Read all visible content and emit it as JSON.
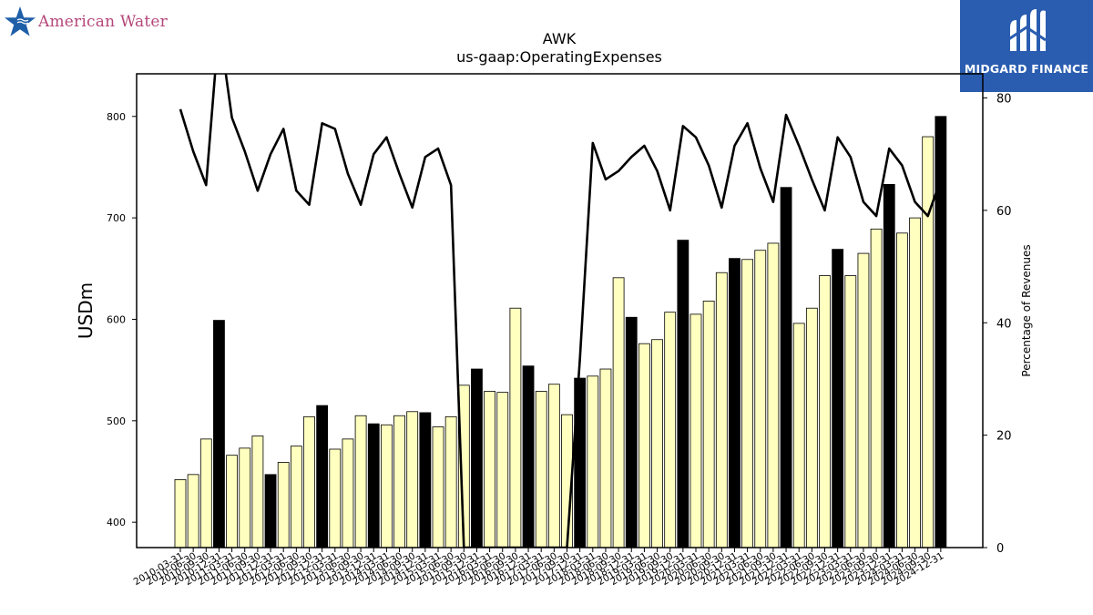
{
  "logos": {
    "left_text": "American Water",
    "right_text": "MIDGARD FINANCE"
  },
  "colors": {
    "bar_fill": "#ffffc0",
    "bar_highlight": "#000000",
    "line": "#000000",
    "logo_right_bg": "#2a5db0",
    "logo_left_text": "#b5477a",
    "logo_left_star": "#1f5fa8"
  },
  "chart_data": {
    "type": "bar",
    "title": "AWK",
    "subtitle": "us-gaap:OperatingExpenses",
    "ylabel": "USDm",
    "y2label": "Percentage of Revenues",
    "ylim": [
      375,
      842
    ],
    "y2lim": [
      0,
      84.3
    ],
    "yticks": [
      400,
      500,
      600,
      700,
      800
    ],
    "y2ticks": [
      0,
      20,
      40,
      60,
      80
    ],
    "grid": false,
    "categories": [
      "2010-03-31",
      "2010-06-30",
      "2010-09-30",
      "2010-12-31",
      "2011-03-31",
      "2011-06-30",
      "2011-09-30",
      "2011-12-31",
      "2012-03-31",
      "2012-06-30",
      "2012-09-30",
      "2012-12-31",
      "2013-03-31",
      "2013-06-30",
      "2013-09-30",
      "2013-12-31",
      "2014-03-31",
      "2014-06-30",
      "2014-09-30",
      "2014-12-31",
      "2015-03-31",
      "2015-06-30",
      "2015-09-30",
      "2015-12-31",
      "2016-03-31",
      "2016-06-30",
      "2016-09-30",
      "2016-12-31",
      "2017-03-31",
      "2017-06-30",
      "2017-09-30",
      "2017-12-31",
      "2018-03-31",
      "2018-06-30",
      "2018-09-30",
      "2018-12-31",
      "2019-03-31",
      "2019-06-30",
      "2019-09-30",
      "2019-12-31",
      "2020-03-31",
      "2020-06-30",
      "2020-09-30",
      "2020-12-31",
      "2021-03-31",
      "2021-06-30",
      "2021-09-30",
      "2021-12-31",
      "2022-03-31",
      "2022-06-30",
      "2022-09-30",
      "2022-12-31",
      "2023-03-31",
      "2023-06-30",
      "2023-09-30",
      "2023-12-31",
      "2024-03-31",
      "2024-06-30",
      "2024-09-30",
      "2024-12-31"
    ],
    "series": [
      {
        "kind": "bar",
        "values": [
          442,
          447,
          482,
          599,
          466,
          473,
          485,
          447,
          459,
          475,
          504,
          515,
          472,
          482,
          505,
          497,
          496,
          505,
          509,
          508,
          494,
          504,
          535,
          551,
          529,
          528,
          611,
          554,
          529,
          536,
          506,
          542,
          544,
          551,
          641,
          602,
          576,
          580,
          607,
          678,
          605,
          618,
          646,
          660,
          659,
          668,
          675,
          730,
          596,
          611,
          643,
          669,
          643,
          665,
          689,
          733,
          685,
          700,
          780,
          800
        ],
        "highlight": [
          false,
          false,
          false,
          true,
          false,
          false,
          false,
          true,
          false,
          false,
          false,
          true,
          false,
          false,
          false,
          true,
          false,
          false,
          false,
          true,
          false,
          false,
          false,
          true,
          false,
          false,
          false,
          true,
          false,
          false,
          false,
          true,
          false,
          false,
          false,
          true,
          false,
          false,
          false,
          true,
          false,
          false,
          false,
          true,
          false,
          false,
          false,
          true,
          false,
          false,
          false,
          true,
          false,
          false,
          false,
          true,
          false,
          false,
          false,
          true
        ]
      },
      {
        "kind": "line",
        "axis": "right",
        "values": [
          78,
          70.5,
          64.5,
          93,
          76.5,
          70.5,
          63.5,
          70,
          74.5,
          63.5,
          61,
          75.5,
          74.5,
          66.5,
          61,
          70,
          73,
          66.5,
          60.5,
          69.5,
          71,
          64.5,
          0,
          0,
          0,
          0,
          0,
          0,
          0,
          0,
          0,
          33.5,
          72,
          65.5,
          67,
          69.5,
          71.5,
          67,
          60,
          75,
          73,
          68,
          60.5,
          71.5,
          75.5,
          67.5,
          61.5,
          77,
          71.5,
          65.5,
          60,
          73,
          69.5,
          61.5,
          59,
          71,
          68,
          61.5,
          59,
          65.5
        ]
      }
    ]
  }
}
